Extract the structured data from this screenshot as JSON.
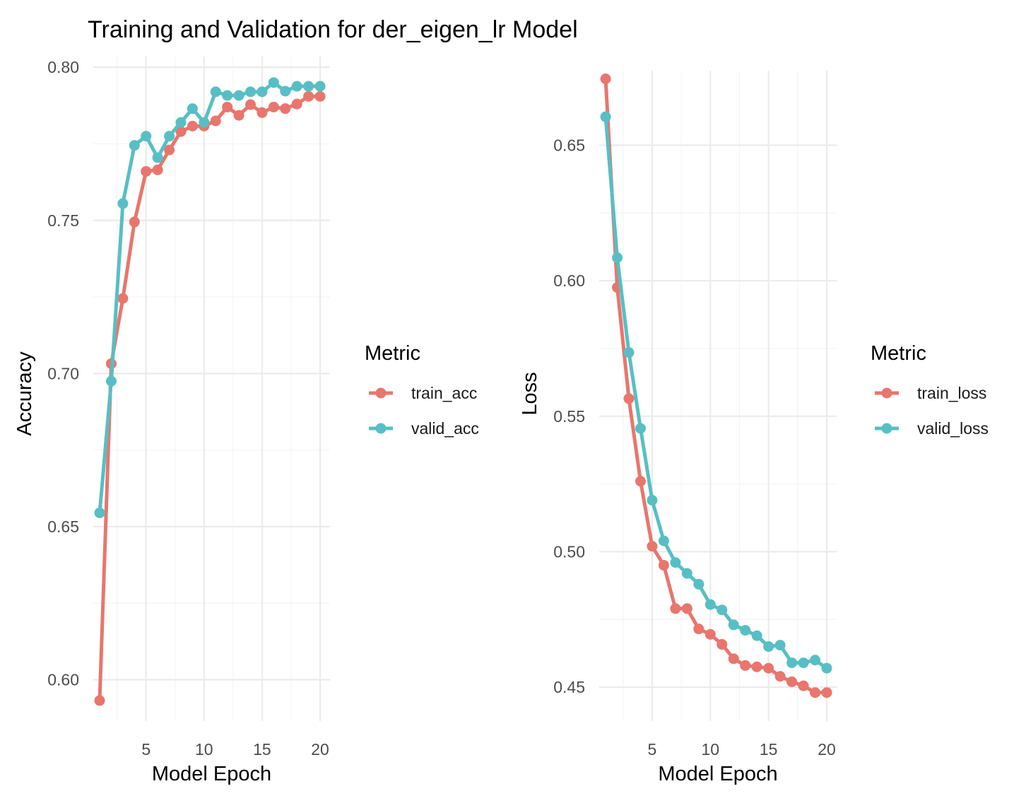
{
  "title": "Training and Validation for der_eigen_lr Model",
  "legend_title": "Metric",
  "colors": {
    "train": "#E8766D",
    "valid": "#57BFC4"
  },
  "chart_data": [
    {
      "type": "line",
      "xlabel": "Model Epoch",
      "ylabel": "Accuracy",
      "x": [
        1,
        2,
        3,
        4,
        5,
        6,
        7,
        8,
        9,
        10,
        11,
        12,
        13,
        14,
        15,
        16,
        17,
        18,
        19,
        20
      ],
      "xlim": [
        0.45,
        20.85
      ],
      "ylim": [
        0.5865,
        0.8035
      ],
      "xticks": [
        5,
        10,
        15,
        20
      ],
      "yticks": [
        0.6,
        0.65,
        0.7,
        0.75,
        0.8
      ],
      "ytick_labels": [
        "0.60",
        "0.65",
        "0.70",
        "0.75",
        "0.80"
      ],
      "xtick_labels": [
        "5",
        "10",
        "15",
        "20"
      ],
      "legend_position": "right",
      "grid": true,
      "series": [
        {
          "name": "train_acc",
          "color": "#E8766D",
          "values": [
            0.5932,
            0.7032,
            0.7245,
            0.7495,
            0.766,
            0.7665,
            0.773,
            0.779,
            0.7808,
            0.7808,
            0.7825,
            0.787,
            0.7843,
            0.7878,
            0.7852,
            0.787,
            0.7865,
            0.788,
            0.7905,
            0.7905
          ]
        },
        {
          "name": "valid_acc",
          "color": "#57BFC4",
          "values": [
            0.6545,
            0.6975,
            0.7555,
            0.7745,
            0.7775,
            0.7705,
            0.7775,
            0.782,
            0.7865,
            0.782,
            0.792,
            0.7908,
            0.7908,
            0.792,
            0.792,
            0.795,
            0.7922,
            0.7938,
            0.7938,
            0.7938
          ]
        }
      ]
    },
    {
      "type": "line",
      "xlabel": "Model Epoch",
      "ylabel": "Loss",
      "x": [
        1,
        2,
        3,
        4,
        5,
        6,
        7,
        8,
        9,
        10,
        11,
        12,
        13,
        14,
        15,
        16,
        17,
        18,
        19,
        20
      ],
      "xlim": [
        0.45,
        20.85
      ],
      "ylim": [
        0.4375,
        0.6775
      ],
      "xticks": [
        5,
        10,
        15,
        20
      ],
      "yticks": [
        0.45,
        0.5,
        0.55,
        0.6,
        0.65
      ],
      "ytick_labels": [
        "0.45",
        "0.50",
        "0.55",
        "0.60",
        "0.65"
      ],
      "xtick_labels": [
        "5",
        "10",
        "15",
        "20"
      ],
      "legend_position": "right",
      "grid": true,
      "series": [
        {
          "name": "train_loss",
          "color": "#E8766D",
          "values": [
            0.6745,
            0.5975,
            0.5565,
            0.526,
            0.502,
            0.495,
            0.479,
            0.479,
            0.4715,
            0.4695,
            0.4658,
            0.4605,
            0.458,
            0.4575,
            0.457,
            0.454,
            0.452,
            0.4505,
            0.448,
            0.448
          ]
        },
        {
          "name": "valid_loss",
          "color": "#57BFC4",
          "values": [
            0.6605,
            0.6085,
            0.5735,
            0.5455,
            0.519,
            0.504,
            0.496,
            0.492,
            0.488,
            0.4805,
            0.4785,
            0.473,
            0.471,
            0.469,
            0.465,
            0.4655,
            0.459,
            0.459,
            0.46,
            0.457
          ]
        }
      ]
    }
  ]
}
